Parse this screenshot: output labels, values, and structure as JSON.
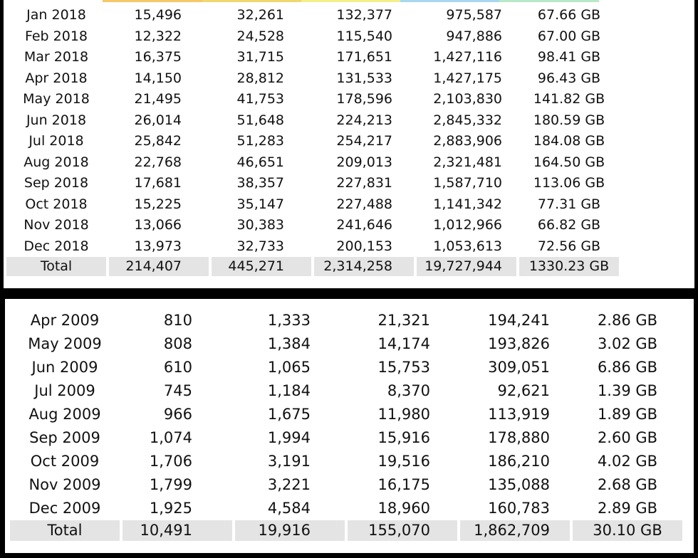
{
  "top_table": {
    "rows": [
      {
        "month": "Jan 2018",
        "c1": "15,496",
        "c2": "32,261",
        "c3": "132,377",
        "c4": "975,587",
        "size": "67.66 GB"
      },
      {
        "month": "Feb 2018",
        "c1": "12,322",
        "c2": "24,528",
        "c3": "115,540",
        "c4": "947,886",
        "size": "67.00 GB"
      },
      {
        "month": "Mar 2018",
        "c1": "16,375",
        "c2": "31,715",
        "c3": "171,651",
        "c4": "1,427,116",
        "size": "98.41 GB"
      },
      {
        "month": "Apr 2018",
        "c1": "14,150",
        "c2": "28,812",
        "c3": "131,533",
        "c4": "1,427,175",
        "size": "96.43 GB"
      },
      {
        "month": "May 2018",
        "c1": "21,495",
        "c2": "41,753",
        "c3": "178,596",
        "c4": "2,103,830",
        "size": "141.82 GB"
      },
      {
        "month": "Jun 2018",
        "c1": "26,014",
        "c2": "51,648",
        "c3": "224,213",
        "c4": "2,845,332",
        "size": "180.59 GB"
      },
      {
        "month": "Jul 2018",
        "c1": "25,842",
        "c2": "51,283",
        "c3": "254,217",
        "c4": "2,883,906",
        "size": "184.08 GB"
      },
      {
        "month": "Aug 2018",
        "c1": "22,768",
        "c2": "46,651",
        "c3": "209,013",
        "c4": "2,321,481",
        "size": "164.50 GB"
      },
      {
        "month": "Sep 2018",
        "c1": "17,681",
        "c2": "38,357",
        "c3": "227,831",
        "c4": "1,587,710",
        "size": "113.06 GB"
      },
      {
        "month": "Oct 2018",
        "c1": "15,225",
        "c2": "35,147",
        "c3": "227,488",
        "c4": "1,141,342",
        "size": "77.31 GB"
      },
      {
        "month": "Nov 2018",
        "c1": "13,066",
        "c2": "30,383",
        "c3": "241,646",
        "c4": "1,012,966",
        "size": "66.82 GB"
      },
      {
        "month": "Dec 2018",
        "c1": "13,973",
        "c2": "32,733",
        "c3": "200,153",
        "c4": "1,053,613",
        "size": "72.56 GB"
      }
    ],
    "total": {
      "label": "Total",
      "c1": "214,407",
      "c2": "445,271",
      "c3": "2,314,258",
      "c4": "19,727,944",
      "size": "1330.23 GB"
    },
    "strip_colors": [
      "#ffffff",
      "#f5c86a",
      "#f0d870",
      "#f2ee8a",
      "#a8d8ef",
      "#b8e8c8",
      "#ffffff"
    ]
  },
  "bottom_table": {
    "rows": [
      {
        "month": "Apr 2009",
        "c1": "810",
        "c2": "1,333",
        "c3": "21,321",
        "c4": "194,241",
        "size": "2.86 GB"
      },
      {
        "month": "May 2009",
        "c1": "808",
        "c2": "1,384",
        "c3": "14,174",
        "c4": "193,826",
        "size": "3.02 GB"
      },
      {
        "month": "Jun 2009",
        "c1": "610",
        "c2": "1,065",
        "c3": "15,753",
        "c4": "309,051",
        "size": "6.86 GB"
      },
      {
        "month": "Jul 2009",
        "c1": "745",
        "c2": "1,184",
        "c3": "8,370",
        "c4": "92,621",
        "size": "1.39 GB"
      },
      {
        "month": "Aug 2009",
        "c1": "966",
        "c2": "1,675",
        "c3": "11,980",
        "c4": "113,919",
        "size": "1.89 GB"
      },
      {
        "month": "Sep 2009",
        "c1": "1,074",
        "c2": "1,994",
        "c3": "15,916",
        "c4": "178,880",
        "size": "2.60 GB"
      },
      {
        "month": "Oct 2009",
        "c1": "1,706",
        "c2": "3,191",
        "c3": "19,516",
        "c4": "186,210",
        "size": "4.02 GB"
      },
      {
        "month": "Nov 2009",
        "c1": "1,799",
        "c2": "3,221",
        "c3": "16,175",
        "c4": "135,088",
        "size": "2.68 GB"
      },
      {
        "month": "Dec 2009",
        "c1": "1,925",
        "c2": "4,584",
        "c3": "18,960",
        "c4": "160,783",
        "size": "2.89 GB"
      }
    ],
    "total": {
      "label": "Total",
      "c1": "10,491",
      "c2": "19,916",
      "c3": "155,070",
      "c4": "1,862,709",
      "size": "30.10 GB"
    }
  },
  "colors": {
    "background": "#000000",
    "panel": "#ffffff",
    "total_row": "#e4e4e4",
    "text": "#111111"
  }
}
